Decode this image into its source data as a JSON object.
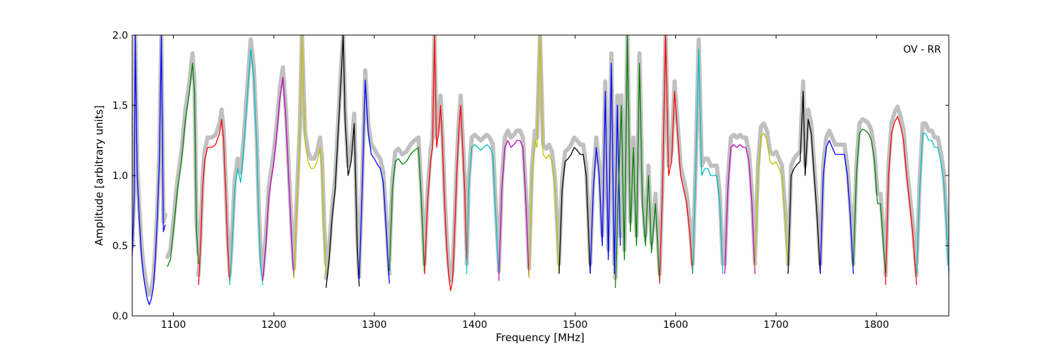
{
  "chart_data": {
    "type": "line",
    "title": "",
    "annotation": "OV - RR",
    "xlabel": "Frequency [MHz]",
    "ylabel": "Amplitude [arbitrary units]",
    "xlim": [
      1059,
      1872
    ],
    "ylim": [
      0.0,
      2.0
    ],
    "xticks": [
      1100,
      1200,
      1300,
      1400,
      1500,
      1600,
      1700,
      1800
    ],
    "xtick_labels": [
      "1100",
      "1200",
      "1300",
      "1400",
      "1500",
      "1600",
      "1700",
      "1800"
    ],
    "yticks": [
      0.0,
      0.5,
      1.0,
      1.5,
      2.0
    ],
    "ytick_labels": [
      "0.0",
      "0.5",
      "1.0",
      "1.5",
      "2.0"
    ],
    "grid": false,
    "background_color": "#c0c0c0",
    "subbands": [
      {
        "color": "#0000ff",
        "x": [
          1059,
          1061,
          1062,
          1064,
          1066,
          1068,
          1070,
          1072,
          1074,
          1076,
          1078,
          1080,
          1082,
          1084,
          1086,
          1088,
          1090,
          1092
        ],
        "y": [
          0.42,
          0.85,
          2.0,
          1.0,
          0.7,
          0.45,
          0.3,
          0.2,
          0.12,
          0.08,
          0.12,
          0.2,
          0.4,
          0.7,
          1.1,
          2.0,
          0.6,
          0.65
        ]
      },
      {
        "color": "#008000",
        "x": [
          1094,
          1097,
          1100,
          1104,
          1108,
          1112,
          1116,
          1119,
          1121,
          1123,
          1125
        ],
        "y": [
          0.35,
          0.4,
          0.6,
          0.9,
          1.1,
          1.4,
          1.6,
          1.8,
          1.6,
          0.6,
          0.37
        ]
      },
      {
        "color": "#ff0000",
        "x": [
          1125,
          1127,
          1129,
          1131,
          1134,
          1138,
          1142,
          1146,
          1148,
          1150,
          1152,
          1154,
          1156
        ],
        "y": [
          0.22,
          0.5,
          0.9,
          1.1,
          1.2,
          1.2,
          1.22,
          1.3,
          1.4,
          1.25,
          0.9,
          0.5,
          0.25
        ]
      },
      {
        "color": "#00bfbf",
        "x": [
          1156,
          1158,
          1161,
          1164,
          1167,
          1170,
          1174,
          1177,
          1180,
          1183,
          1185,
          1187,
          1189
        ],
        "y": [
          0.22,
          0.45,
          0.9,
          1.05,
          0.95,
          1.2,
          1.6,
          1.9,
          1.7,
          1.2,
          0.7,
          0.35,
          0.22
        ]
      },
      {
        "color": "#bf00bf",
        "x": [
          1189,
          1192,
          1195,
          1197,
          1200,
          1203,
          1206,
          1209,
          1212,
          1215,
          1218,
          1220
        ],
        "y": [
          0.25,
          0.5,
          0.85,
          0.95,
          1.1,
          1.3,
          1.55,
          1.7,
          1.4,
          0.95,
          0.5,
          0.27
        ]
      },
      {
        "color": "#bfbf00",
        "x": [
          1220,
          1223,
          1226,
          1228,
          1231,
          1234,
          1237,
          1240,
          1243,
          1246,
          1248,
          1250,
          1252
        ],
        "y": [
          0.27,
          0.8,
          1.3,
          2.0,
          1.25,
          1.1,
          1.05,
          1.05,
          1.1,
          1.2,
          1.05,
          0.6,
          0.3
        ]
      },
      {
        "color": "#000000",
        "x": [
          1252,
          1255,
          1258,
          1261,
          1264,
          1267,
          1269,
          1271,
          1274,
          1277,
          1280,
          1283,
          1285
        ],
        "y": [
          0.2,
          0.4,
          0.7,
          0.9,
          1.3,
          1.7,
          2.0,
          1.4,
          1.0,
          1.1,
          1.37,
          0.5,
          0.21
        ]
      },
      {
        "color": "#0000ff",
        "x": [
          1285,
          1288,
          1291,
          1294,
          1297,
          1300,
          1303,
          1306,
          1309,
          1312,
          1315
        ],
        "y": [
          0.26,
          0.9,
          1.68,
          1.3,
          1.15,
          1.12,
          1.08,
          1.05,
          0.95,
          0.6,
          0.23
        ]
      },
      {
        "color": "#008000",
        "x": [
          1315,
          1318,
          1321,
          1324,
          1328,
          1332,
          1336,
          1340,
          1344,
          1347,
          1350
        ],
        "y": [
          0.32,
          0.9,
          1.1,
          1.12,
          1.08,
          1.1,
          1.15,
          1.18,
          1.2,
          0.8,
          0.3
        ]
      },
      {
        "color": "#ff0000",
        "x": [
          1350,
          1353,
          1356,
          1358,
          1360,
          1362,
          1364,
          1366,
          1368,
          1370,
          1372,
          1374,
          1376,
          1378,
          1380,
          1382,
          1384,
          1386,
          1388,
          1390,
          1392
        ],
        "y": [
          0.3,
          0.8,
          1.1,
          1.2,
          2.0,
          1.2,
          1.3,
          1.5,
          1.2,
          0.8,
          0.5,
          0.3,
          0.18,
          0.25,
          0.6,
          1.0,
          1.3,
          1.5,
          1.2,
          0.9,
          0.4
        ]
      },
      {
        "color": "#00bfbf",
        "x": [
          1392,
          1394,
          1397,
          1400,
          1403,
          1406,
          1409,
          1412,
          1415,
          1418,
          1421,
          1424
        ],
        "y": [
          0.3,
          0.9,
          1.2,
          1.22,
          1.2,
          1.18,
          1.2,
          1.22,
          1.2,
          1.15,
          0.7,
          0.3
        ]
      },
      {
        "color": "#bf00bf",
        "x": [
          1424,
          1427,
          1430,
          1433,
          1436,
          1439,
          1442,
          1445,
          1448,
          1451,
          1454
        ],
        "y": [
          0.25,
          0.9,
          1.2,
          1.25,
          1.2,
          1.22,
          1.25,
          1.25,
          1.2,
          0.8,
          0.28
        ]
      },
      {
        "color": "#bfbf00",
        "x": [
          1454,
          1457,
          1460,
          1462,
          1465,
          1468,
          1471,
          1474,
          1477,
          1480,
          1484
        ],
        "y": [
          0.27,
          1.0,
          1.25,
          1.2,
          2.0,
          1.15,
          1.12,
          1.15,
          1.1,
          0.9,
          0.3
        ]
      },
      {
        "color": "#000000",
        "x": [
          1484,
          1487,
          1490,
          1493,
          1496,
          1499,
          1502,
          1505,
          1508,
          1511,
          1515
        ],
        "y": [
          0.3,
          0.9,
          1.1,
          1.12,
          1.15,
          1.2,
          1.18,
          1.15,
          1.15,
          1.0,
          0.3
        ]
      },
      {
        "color": "#0000ff",
        "x": [
          1515,
          1518,
          1521,
          1524,
          1527,
          1530,
          1533,
          1536,
          1539,
          1542,
          1545
        ],
        "y": [
          0.3,
          0.9,
          1.2,
          1.0,
          0.5,
          1.6,
          0.4,
          1.8,
          0.3,
          1.5,
          0.5
        ]
      },
      {
        "color": "#008000",
        "x": [
          1540,
          1543,
          1546,
          1549,
          1552,
          1555,
          1558,
          1561,
          1564,
          1567,
          1570,
          1573,
          1576,
          1580,
          1584
        ],
        "y": [
          0.2,
          0.9,
          1.5,
          0.4,
          2.0,
          0.6,
          1.2,
          0.5,
          1.8,
          0.8,
          0.5,
          1.0,
          0.45,
          0.8,
          0.25
        ]
      },
      {
        "color": "#ff0000",
        "x": [
          1584,
          1587,
          1590,
          1593,
          1596,
          1599,
          1602,
          1605,
          1608,
          1611,
          1614,
          1617
        ],
        "y": [
          0.23,
          0.9,
          2.0,
          1.0,
          1.1,
          1.6,
          1.3,
          1.0,
          0.9,
          0.8,
          0.6,
          0.3
        ]
      },
      {
        "color": "#00bfbf",
        "x": [
          1617,
          1620,
          1623,
          1626,
          1629,
          1632,
          1635,
          1638,
          1641,
          1644,
          1647
        ],
        "y": [
          0.3,
          1.0,
          1.9,
          1.0,
          1.05,
          1.05,
          1.0,
          1.0,
          1.0,
          0.8,
          0.3
        ]
      },
      {
        "color": "#bf00bf",
        "x": [
          1649,
          1652,
          1655,
          1658,
          1661,
          1664,
          1667,
          1670,
          1673,
          1676,
          1679
        ],
        "y": [
          0.3,
          0.9,
          1.2,
          1.22,
          1.2,
          1.22,
          1.2,
          1.2,
          1.1,
          0.8,
          0.3
        ]
      },
      {
        "color": "#bfbf00",
        "x": [
          1679,
          1682,
          1685,
          1688,
          1691,
          1694,
          1697,
          1700,
          1703,
          1706,
          1709,
          1712
        ],
        "y": [
          0.35,
          1.0,
          1.28,
          1.3,
          1.25,
          1.1,
          1.08,
          1.1,
          1.05,
          1.0,
          0.7,
          0.35
        ]
      },
      {
        "color": "#000000",
        "x": [
          1712,
          1715,
          1718,
          1721,
          1724,
          1727,
          1729,
          1732,
          1735,
          1738,
          1741,
          1744
        ],
        "y": [
          0.3,
          1.0,
          1.05,
          1.08,
          1.1,
          1.6,
          1.0,
          1.4,
          1.3,
          1.0,
          0.7,
          0.3
        ]
      },
      {
        "color": "#0000ff",
        "x": [
          1744,
          1747,
          1750,
          1753,
          1756,
          1759,
          1762,
          1765,
          1768,
          1771,
          1774,
          1777
        ],
        "y": [
          0.3,
          1.0,
          1.2,
          1.25,
          1.2,
          1.15,
          1.15,
          1.15,
          1.15,
          1.0,
          0.7,
          0.3
        ]
      },
      {
        "color": "#008000",
        "x": [
          1777,
          1780,
          1783,
          1786,
          1789,
          1792,
          1795,
          1798,
          1801,
          1804,
          1807,
          1809
        ],
        "y": [
          0.35,
          1.0,
          1.3,
          1.33,
          1.32,
          1.3,
          1.25,
          1.1,
          0.8,
          0.8,
          0.5,
          0.3
        ]
      },
      {
        "color": "#ff0000",
        "x": [
          1809,
          1812,
          1815,
          1818,
          1821,
          1824,
          1827,
          1830,
          1833,
          1836,
          1840
        ],
        "y": [
          0.22,
          1.0,
          1.3,
          1.38,
          1.42,
          1.35,
          1.25,
          1.0,
          0.8,
          0.6,
          0.22
        ]
      },
      {
        "color": "#00bfbf",
        "x": [
          1840,
          1843,
          1846,
          1849,
          1852,
          1855,
          1858,
          1861,
          1864,
          1867,
          1870,
          1872
        ],
        "y": [
          0.3,
          0.9,
          1.3,
          1.3,
          1.25,
          1.25,
          1.2,
          1.2,
          1.1,
          0.95,
          0.6,
          0.3
        ]
      }
    ]
  }
}
